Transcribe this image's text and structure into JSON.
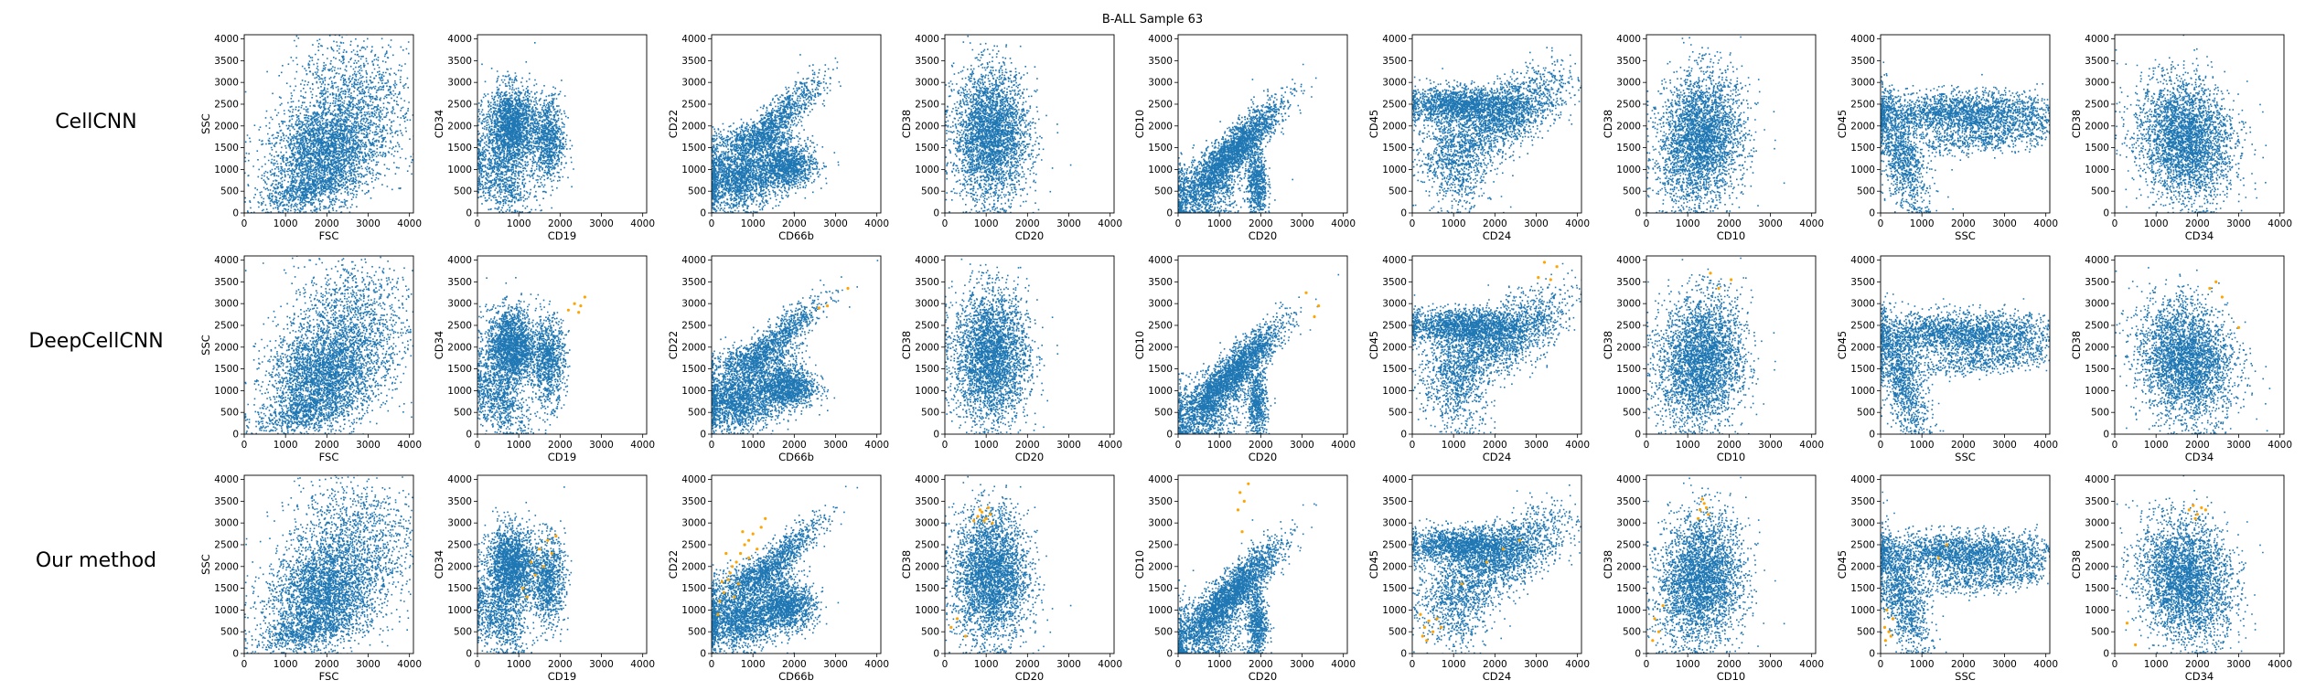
{
  "figure": {
    "title": "B-ALL Sample 63",
    "row_labels": [
      "CellCNN",
      "DeepCellCNN",
      "Our method"
    ],
    "colors": {
      "all_cells": "#1f77b4",
      "selected_cells": "#ffa500"
    }
  },
  "chart_data": {
    "type": "scatter",
    "title": "B-ALL Sample 63",
    "grid": false,
    "xlim": [
      0,
      4096
    ],
    "ylim": [
      0,
      4096
    ],
    "ticks": [
      0,
      500,
      1000,
      1500,
      2000,
      2500,
      3000,
      3500,
      4000
    ],
    "x_ticks": [
      0,
      1000,
      2000,
      3000,
      4000
    ],
    "y_ticks": [
      0,
      500,
      1000,
      1500,
      2000,
      2500,
      3000,
      3500,
      4000
    ],
    "rows": [
      "CellCNN",
      "DeepCellCNN",
      "Our method"
    ],
    "panels": [
      {
        "xlabel": "FSC",
        "ylabel": "SSC"
      },
      {
        "xlabel": "CD19",
        "ylabel": "CD34"
      },
      {
        "xlabel": "CD66b",
        "ylabel": "CD22"
      },
      {
        "xlabel": "CD20",
        "ylabel": "CD38"
      },
      {
        "xlabel": "CD20",
        "ylabel": "CD10"
      },
      {
        "xlabel": "CD24",
        "ylabel": "CD45"
      },
      {
        "xlabel": "CD10",
        "ylabel": "CD38"
      },
      {
        "xlabel": "SSC",
        "ylabel": "CD45"
      },
      {
        "xlabel": "CD34",
        "ylabel": "CD38"
      }
    ],
    "series": [
      {
        "color": "#1f77b4"
      },
      {
        "color": "#ffa500"
      }
    ],
    "selected_points": {
      "CellCNN": [],
      "DeepCellCNN": {
        "1": [
          [
            2500,
            2950
          ],
          [
            2600,
            3150
          ],
          [
            2450,
            2800
          ],
          [
            2350,
            3000
          ],
          [
            2200,
            2850
          ]
        ],
        "2": [
          [
            3300,
            3350
          ],
          [
            2600,
            2900
          ],
          [
            2800,
            2950
          ]
        ],
        "4": [
          [
            3400,
            2950
          ],
          [
            3100,
            3250
          ],
          [
            3300,
            2700
          ]
        ],
        "5": [
          [
            3200,
            3950
          ],
          [
            3500,
            3850
          ],
          [
            3350,
            3550
          ],
          [
            3050,
            3600
          ]
        ],
        "6": [
          [
            1750,
            3350
          ],
          [
            2050,
            3550
          ],
          [
            1550,
            3700
          ]
        ],
        "8": [
          [
            2300,
            3350
          ],
          [
            2450,
            3500
          ],
          [
            2600,
            3150
          ],
          [
            3000,
            2450
          ]
        ]
      },
      "Our method": {
        "1": [
          [
            1500,
            2400
          ],
          [
            1300,
            2100
          ],
          [
            1700,
            2600
          ],
          [
            1400,
            1800
          ],
          [
            1800,
            2300
          ],
          [
            1100,
            1500
          ],
          [
            1600,
            2000
          ],
          [
            1900,
            2700
          ],
          [
            1200,
            1300
          ]
        ],
        "2": [
          [
            400,
            1700
          ],
          [
            500,
            2000
          ],
          [
            700,
            2300
          ],
          [
            900,
            2600
          ],
          [
            1200,
            2900
          ],
          [
            300,
            1400
          ],
          [
            800,
            2500
          ],
          [
            1000,
            2750
          ],
          [
            600,
            2100
          ],
          [
            450,
            1850
          ],
          [
            1100,
            2400
          ],
          [
            200,
            1200
          ],
          [
            350,
            2300
          ],
          [
            650,
            1600
          ],
          [
            150,
            900
          ],
          [
            900,
            2200
          ],
          [
            750,
            2800
          ],
          [
            1300,
            3100
          ],
          [
            550,
            1300
          ],
          [
            250,
            1650
          ]
        ],
        "3": [
          [
            800,
            3150
          ],
          [
            900,
            3250
          ],
          [
            1000,
            3100
          ],
          [
            1100,
            3200
          ],
          [
            950,
            3050
          ],
          [
            850,
            3300
          ],
          [
            1050,
            3350
          ],
          [
            700,
            3050
          ],
          [
            1150,
            3000
          ],
          [
            300,
            800
          ],
          [
            150,
            600
          ],
          [
            500,
            400
          ]
        ],
        "4": [
          [
            1500,
            3700
          ],
          [
            1600,
            3500
          ],
          [
            1700,
            3900
          ],
          [
            1450,
            3300
          ],
          [
            1550,
            2800
          ]
        ],
        "5": [
          [
            200,
            900
          ],
          [
            300,
            600
          ],
          [
            400,
            750
          ],
          [
            500,
            500
          ],
          [
            600,
            800
          ],
          [
            250,
            400
          ],
          [
            700,
            600
          ],
          [
            350,
            300
          ],
          [
            1200,
            1600
          ],
          [
            1800,
            2100
          ],
          [
            2200,
            2400
          ],
          [
            2600,
            2600
          ]
        ],
        "6": [
          [
            1300,
            3300
          ],
          [
            1400,
            3450
          ],
          [
            1500,
            3200
          ],
          [
            1250,
            3100
          ],
          [
            1350,
            3550
          ],
          [
            1450,
            3350
          ],
          [
            200,
            800
          ],
          [
            300,
            500
          ],
          [
            400,
            1100
          ],
          [
            150,
            300
          ]
        ],
        "7": [
          [
            100,
            600
          ],
          [
            200,
            500
          ],
          [
            150,
            1000
          ],
          [
            250,
            400
          ],
          [
            300,
            800
          ],
          [
            120,
            300
          ],
          [
            1400,
            2200
          ],
          [
            1600,
            2500
          ]
        ],
        "8": [
          [
            1800,
            3300
          ],
          [
            1900,
            3400
          ],
          [
            2000,
            3200
          ],
          [
            2100,
            3350
          ],
          [
            1950,
            3100
          ],
          [
            2200,
            3300
          ],
          [
            500,
            200
          ],
          [
            300,
            700
          ]
        ]
      }
    }
  }
}
